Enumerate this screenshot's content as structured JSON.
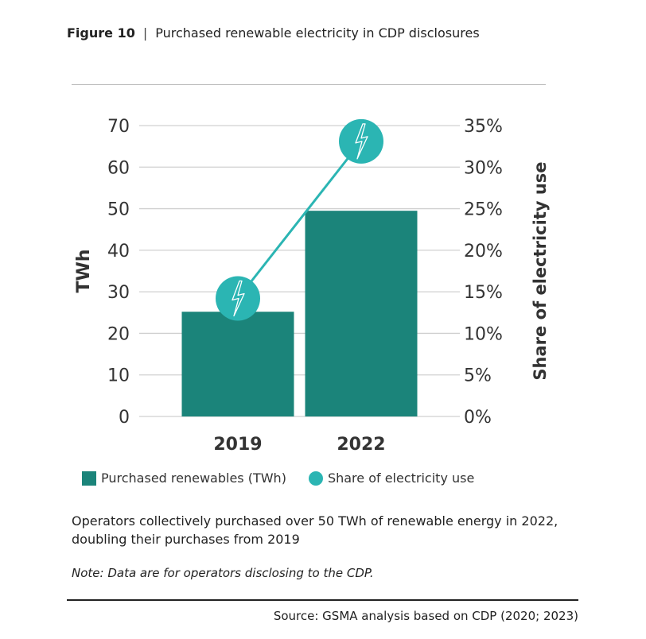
{
  "figure": {
    "label": "Figure 10",
    "separator": "|",
    "title": "Purchased renewable electricity in CDP disclosures"
  },
  "chart_data": {
    "type": "bar",
    "categories": [
      "2019",
      "2022"
    ],
    "series": [
      {
        "name": "Purchased renewables (TWh)",
        "type": "bar",
        "axis": "left",
        "values": [
          25.2,
          49.5
        ],
        "color": "#1b847a"
      },
      {
        "name": "Share of electricity use",
        "type": "line",
        "axis": "right",
        "values": [
          14.2,
          33.1
        ],
        "unit": "%",
        "color": "#2bb5b3",
        "marker": "lightning-bolt-circle"
      }
    ],
    "ylabel": "TWh",
    "ylim": [
      0,
      70
    ],
    "yticks": [
      "0",
      "10",
      "20",
      "30",
      "40",
      "50",
      "60",
      "70"
    ],
    "y2label": "Share of electricity use",
    "y2lim": [
      0,
      35
    ],
    "y2ticks": [
      "0%",
      "5%",
      "10%",
      "15%",
      "20%",
      "25%",
      "30%",
      "35%"
    ],
    "grid": true,
    "legend": "bottom"
  },
  "caption": "Operators collectively purchased over 50 TWh of renewable energy in 2022, doubling their purchases from 2019",
  "note": "Note: Data are for operators disclosing to the CDP.",
  "source": "Source: GSMA analysis based on CDP (2020; 2023)"
}
